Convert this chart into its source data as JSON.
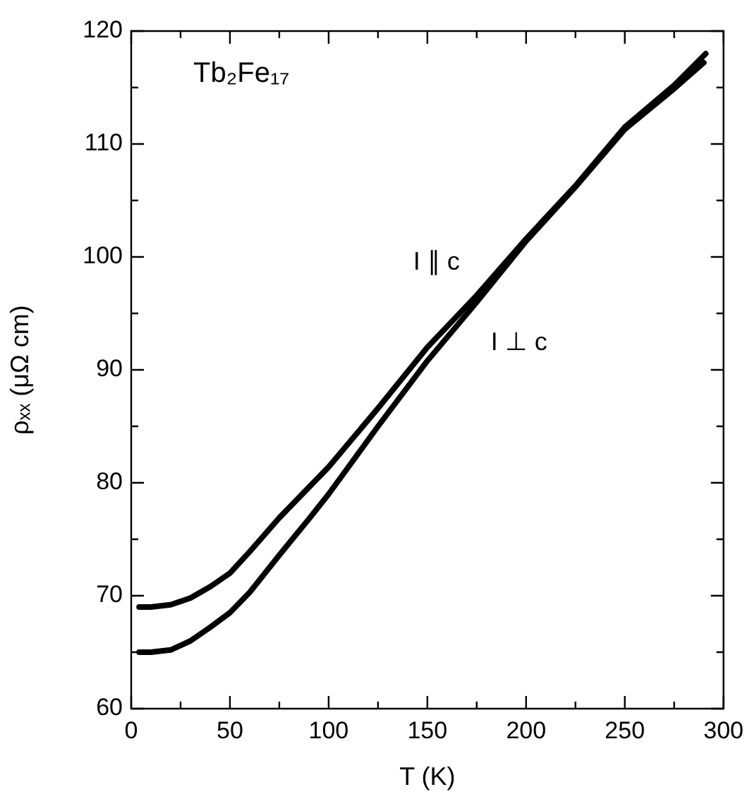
{
  "chart_data": {
    "type": "line",
    "xlabel": "T (K)",
    "ylabel": "ρₓₓ (μΩ cm)",
    "annotations": [
      "Tb₂Fe₁₇"
    ],
    "xlim": [
      0,
      300
    ],
    "ylim": [
      60,
      120
    ],
    "xticks": [
      0,
      {
        "value": 25,
        "label": null
      },
      50,
      {
        "value": 75,
        "label": null
      },
      100,
      {
        "value": 125,
        "label": null
      },
      150,
      {
        "value": 175,
        "label": null
      },
      200,
      {
        "value": 225,
        "label": null
      },
      250,
      {
        "value": 275,
        "label": null
      },
      300
    ],
    "yticks": [
      60,
      {
        "value": 65,
        "label": null
      },
      70,
      {
        "value": 75,
        "label": null
      },
      80,
      {
        "value": 85,
        "label": null
      },
      90,
      {
        "value": 95,
        "label": null
      },
      100,
      {
        "value": 105,
        "label": null
      },
      110,
      {
        "value": 115,
        "label": null
      },
      120
    ],
    "marker": "none",
    "legend": false,
    "series": [
      {
        "name": "I ∥ c",
        "color": "#000000",
        "x": [
          4,
          10,
          20,
          30,
          40,
          50,
          60,
          75,
          90,
          100,
          125,
          150,
          175,
          200,
          225,
          250,
          275,
          291
        ],
        "values": [
          69.0,
          69.0,
          69.2,
          69.8,
          70.8,
          72.0,
          73.9,
          76.9,
          79.6,
          81.4,
          86.6,
          92.0,
          96.6,
          101.6,
          106.3,
          111.5,
          115.2,
          118.0
        ]
      },
      {
        "name": "I ⊥ c",
        "color": "#000000",
        "x": [
          4,
          10,
          20,
          30,
          40,
          50,
          60,
          75,
          90,
          100,
          125,
          150,
          175,
          200,
          225,
          250,
          275,
          290
        ],
        "values": [
          65.0,
          65.0,
          65.2,
          66.0,
          67.2,
          68.5,
          70.3,
          73.6,
          76.8,
          79.0,
          85.0,
          90.8,
          96.0,
          101.4,
          106.2,
          111.3,
          114.9,
          117.2
        ]
      }
    ]
  }
}
